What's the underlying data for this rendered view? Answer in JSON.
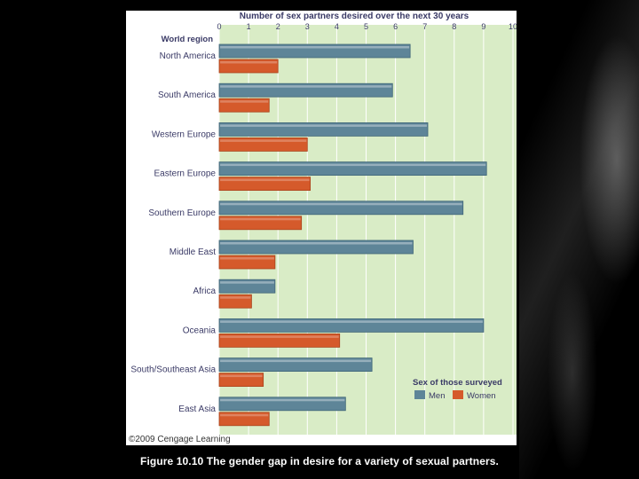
{
  "caption": "Figure 10.10 The gender gap in desire for a variety of sexual partners.",
  "copyright": "©2009 Cengage Learning",
  "chart_data": {
    "type": "bar",
    "orientation": "horizontal",
    "title": "Number of sex partners desired over the next 30 years",
    "category_axis_label": "World region",
    "xlim": [
      0,
      10
    ],
    "xticks": [
      0,
      1,
      2,
      3,
      4,
      5,
      6,
      7,
      8,
      9,
      10
    ],
    "grid": true,
    "categories": [
      "North America",
      "South America",
      "Western Europe",
      "Eastern Europe",
      "Southern Europe",
      "Middle East",
      "Africa",
      "Oceania",
      "South/Southeast Asia",
      "East Asia"
    ],
    "series": [
      {
        "name": "Men",
        "color": "#5e8598",
        "values": [
          6.5,
          5.9,
          7.1,
          9.1,
          8.3,
          6.6,
          1.9,
          9.0,
          5.2,
          4.3
        ]
      },
      {
        "name": "Women",
        "color": "#d55a2b",
        "values": [
          2.0,
          1.7,
          3.0,
          3.1,
          2.8,
          1.9,
          1.1,
          4.1,
          1.5,
          1.7
        ]
      }
    ],
    "legend": {
      "title": "Sex of those surveyed",
      "position": "bottom-right"
    }
  }
}
